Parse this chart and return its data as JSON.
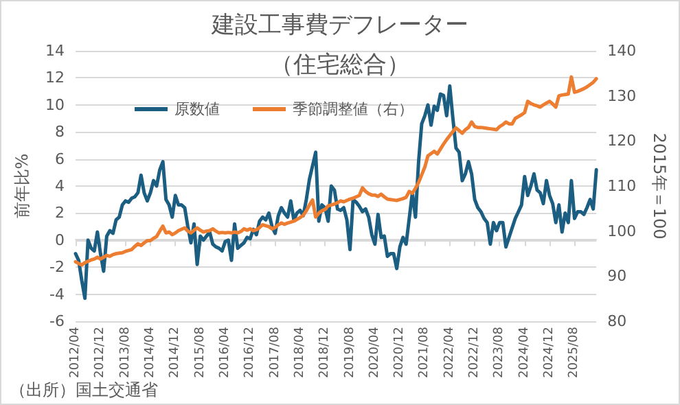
{
  "chart_data": {
    "type": "line",
    "title": "建設工事費デフレーター",
    "subtitle": "（住宅総合）",
    "ylabel": "前年比%",
    "y2label": "2015年＝100",
    "annotations": [
      "（出所）国土交通省"
    ],
    "categories": [
      "2012/04",
      null,
      null,
      null,
      null,
      null,
      null,
      null,
      "2012/12",
      null,
      null,
      null,
      null,
      null,
      null,
      null,
      "2013/08",
      null,
      null,
      null,
      null,
      null,
      null,
      null,
      "2014/04",
      null,
      null,
      null,
      null,
      null,
      null,
      null,
      "2014/12",
      null,
      null,
      null,
      null,
      null,
      null,
      null,
      "2015/08",
      null,
      null,
      null,
      null,
      null,
      null,
      null,
      "2016/04",
      null,
      null,
      null,
      null,
      null,
      null,
      null,
      "2016/12",
      null,
      null,
      null,
      null,
      null,
      null,
      null,
      "2017/08",
      null,
      null,
      null,
      null,
      null,
      null,
      null,
      "2018/04",
      null,
      null,
      null,
      null,
      null,
      null,
      null,
      "2018/12",
      null,
      null,
      null,
      null,
      null,
      null,
      null,
      "2019/08",
      null,
      null,
      null,
      null,
      null,
      null,
      null,
      "2020/04",
      null,
      null,
      null,
      null,
      null,
      null,
      null,
      "2020/12",
      null,
      null,
      null,
      null,
      null,
      null,
      null,
      "2021/08",
      null,
      null,
      null,
      null,
      null,
      null,
      null,
      "2022/04",
      null,
      null,
      null,
      null,
      null,
      null,
      null,
      "2022/12",
      null,
      null,
      null,
      null,
      null,
      null,
      null,
      "2023/08",
      null,
      null,
      null,
      null,
      null,
      null,
      null,
      "2024/04",
      null,
      null,
      null,
      null,
      null,
      null,
      null,
      "2024/12",
      null,
      null,
      null,
      null,
      null,
      null,
      null,
      "2025/08",
      null,
      null,
      null,
      null,
      null,
      null,
      null
    ],
    "series": [
      {
        "name": "原数値",
        "color": "#1b5e82",
        "values": [
          -1,
          -1.5,
          -3,
          -4.3,
          0,
          -0.6,
          -0.8,
          0.6,
          -1,
          -2.3,
          0.3,
          0.7,
          0.5,
          1.5,
          1.7,
          2.6,
          2.9,
          2.8,
          3.1,
          3.2,
          3.5,
          4.8,
          3.5,
          2.9,
          3.5,
          4.4,
          4,
          5.2,
          5.8,
          3,
          2.6,
          1.7,
          3.3,
          2.6,
          2.6,
          2.4,
          1,
          -0.2,
          1.2,
          -1.8,
          0.3,
          0,
          0.3,
          0.6,
          -0.3,
          -0.5,
          -0.6,
          -0.8,
          -0.1,
          0,
          -1.5,
          1.2,
          -0.6,
          -0.4,
          -0.2,
          0.2,
          0.1,
          0.8,
          0.4,
          1.4,
          1.7,
          1.5,
          2,
          1,
          0.5,
          1.8,
          2.4,
          2,
          1.7,
          2.9,
          1.5,
          2,
          2.2,
          1.8,
          3,
          4.5,
          5.5,
          6.5,
          1.4,
          2.6,
          2.4,
          1.4,
          4,
          3.7,
          2.3,
          2.2,
          2.4,
          1.5,
          -0.7,
          3,
          2.8,
          2.5,
          2.1,
          2.3,
          1.7,
          0.4,
          -0.3,
          1.9,
          0.2,
          0.3,
          -1.2,
          -1,
          -1,
          -2.1,
          -0.5,
          0.2,
          -0.3,
          1.6,
          3.5,
          1.7,
          5.8,
          8.6,
          9.2,
          10,
          8.5,
          9.9,
          9.6,
          10.8,
          10.7,
          9.2,
          11.4,
          9,
          6.8,
          6.5,
          4.4,
          4.9,
          5.8,
          4.9,
          3,
          2.4,
          2.1,
          1.6,
          1.3,
          -0.3,
          1.3,
          0.7,
          1.3,
          1.3,
          -0.5,
          0.2,
          0.9,
          1.6,
          2.1,
          2.6,
          4.7,
          3.3,
          4,
          4.9,
          3.7,
          3.5,
          2.7,
          4.4,
          3.3,
          2.7,
          1.3,
          2.6,
          0.6,
          2,
          1.3,
          4.4,
          1.6,
          2.1,
          2.1,
          1.9,
          2.4,
          3,
          2.3,
          5.2
        ]
      },
      {
        "name": "季節調整値（右）",
        "color": "#ed7d31",
        "axis": "y2",
        "values": [
          93.2,
          92.8,
          92.5,
          93,
          93.3,
          93.6,
          93.8,
          94.2,
          93.8,
          94.2,
          94.6,
          94.4,
          94.8,
          95,
          95.1,
          95.2,
          95.5,
          95.7,
          95.9,
          96.6,
          97.2,
          96.8,
          97.4,
          97.9,
          97.9,
          98.4,
          98.8,
          100,
          101.1,
          99.6,
          99.8,
          99.2,
          99.6,
          100.1,
          100.4,
          100.7,
          100,
          99.6,
          100.2,
          100.7,
          100.2,
          99.8,
          100,
          100.1,
          100.5,
          100,
          99.6,
          99.7,
          99.6,
          99.7,
          99.6,
          99.8,
          99.6,
          99.9,
          100.5,
          100.2,
          100.5,
          100.1,
          100.3,
          100.8,
          101.4,
          101.2,
          101,
          100.5,
          100.8,
          101.4,
          101.8,
          101.5,
          101.8,
          102,
          102.2,
          102.6,
          103,
          103.5,
          104.5,
          105.8,
          106.9,
          103.1,
          104,
          104.5,
          104.8,
          105.6,
          105.8,
          106,
          106.3,
          106.7,
          106.5,
          106.8,
          107.1,
          107.3,
          107.6,
          107.9,
          109.6,
          108.8,
          108.3,
          108,
          108,
          107.7,
          108.2,
          107.6,
          107.1,
          107,
          106.9,
          106.8,
          107,
          107.2,
          107.5,
          108.8,
          108.4,
          109.5,
          110.8,
          112.5,
          114.2,
          116.7,
          117.2,
          117.7,
          117.1,
          118.2,
          119.3,
          120.3,
          121.2,
          122.1,
          122.9,
          122.3,
          121.7,
          122.5,
          123,
          124.2,
          123.2,
          123,
          123,
          122.9,
          122.8,
          122.7,
          122.6,
          122.5,
          123.2,
          123.6,
          124.2,
          123.8,
          123.8,
          125,
          125.4,
          125.8,
          126.3,
          128.8,
          128.3,
          128,
          127.8,
          127.5,
          128,
          128.4,
          128.8,
          128.2,
          127.5,
          130,
          130.2,
          130.3,
          130.4,
          134.2,
          130.8,
          131,
          131.3,
          131.6,
          132,
          132.5,
          133,
          133.8
        ]
      }
    ],
    "ylim": [
      -6,
      14
    ],
    "yticks": [
      -6,
      -4,
      -2,
      0,
      2,
      4,
      6,
      8,
      10,
      12,
      14
    ],
    "y2lim": [
      80,
      140
    ],
    "y2ticks": [
      80,
      90,
      100,
      110,
      120,
      130,
      140
    ],
    "grid": "y",
    "legend": "top",
    "line_style": "solid"
  }
}
